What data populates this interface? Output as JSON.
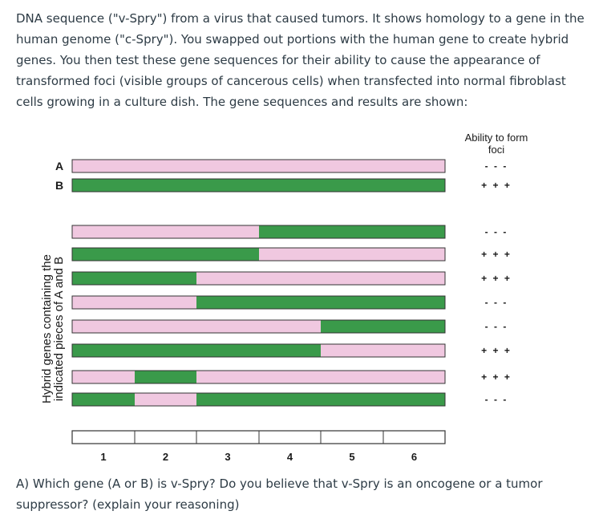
{
  "intro_text": "DNA sequence (\"v-Spry\") from a virus that caused tumors. It shows homology to a gene in the human genome (\"c-Spry\"). You swapped out portions with the human gene to create hybrid genes. You then test these gene sequences for their ability to cause the appearance of transformed foci (visible groups of cancerous cells) when transfected into normal fibroblast cells growing in a culture dish. The gene sequences and results are shown:",
  "figure": {
    "column_title_line1": "Ability to form",
    "column_title_line2": "foci",
    "side_label_line1": "Hybrid genes containing the",
    "side_label_line2": "indicated pieces of A and B",
    "colors": {
      "A": "#f0c8e0",
      "B": "#3a9a4a",
      "outline": "#333333"
    },
    "scale_ticks": [
      "1",
      "2",
      "3",
      "4",
      "5",
      "6"
    ],
    "rows": [
      {
        "label": "A",
        "segments": [
          "A",
          "A",
          "A",
          "A",
          "A",
          "A"
        ],
        "result": "- - -"
      },
      {
        "label": "B",
        "segments": [
          "B",
          "B",
          "B",
          "B",
          "B",
          "B"
        ],
        "result": "+ + +"
      },
      {
        "label": "",
        "segments": [
          "A",
          "A",
          "A",
          "B",
          "B",
          "B"
        ],
        "result": "- - -"
      },
      {
        "label": "",
        "segments": [
          "B",
          "B",
          "B",
          "A",
          "A",
          "A"
        ],
        "result": "+ + +"
      },
      {
        "label": "",
        "segments": [
          "B",
          "B",
          "A",
          "A",
          "A",
          "A"
        ],
        "result": "+ + +"
      },
      {
        "label": "",
        "segments": [
          "A",
          "A",
          "B",
          "B",
          "B",
          "B"
        ],
        "result": "- - -"
      },
      {
        "label": "",
        "segments": [
          "A",
          "A",
          "A",
          "A",
          "B",
          "B"
        ],
        "result": "- - -"
      },
      {
        "label": "",
        "segments": [
          "B",
          "B",
          "B",
          "B",
          "A",
          "A"
        ],
        "result": "+ + +"
      },
      {
        "label": "",
        "segments": [
          "A",
          "B",
          "A",
          "A",
          "A",
          "A"
        ],
        "result": "+ + +"
      },
      {
        "label": "",
        "segments": [
          "B",
          "A",
          "B",
          "B",
          "B",
          "B"
        ],
        "result": "- - -"
      }
    ]
  },
  "question_text": "A) Which gene (A or B) is v-Spry? Do you believe that v-Spry is an oncogene or a tumor suppressor? (explain your reasoning)"
}
